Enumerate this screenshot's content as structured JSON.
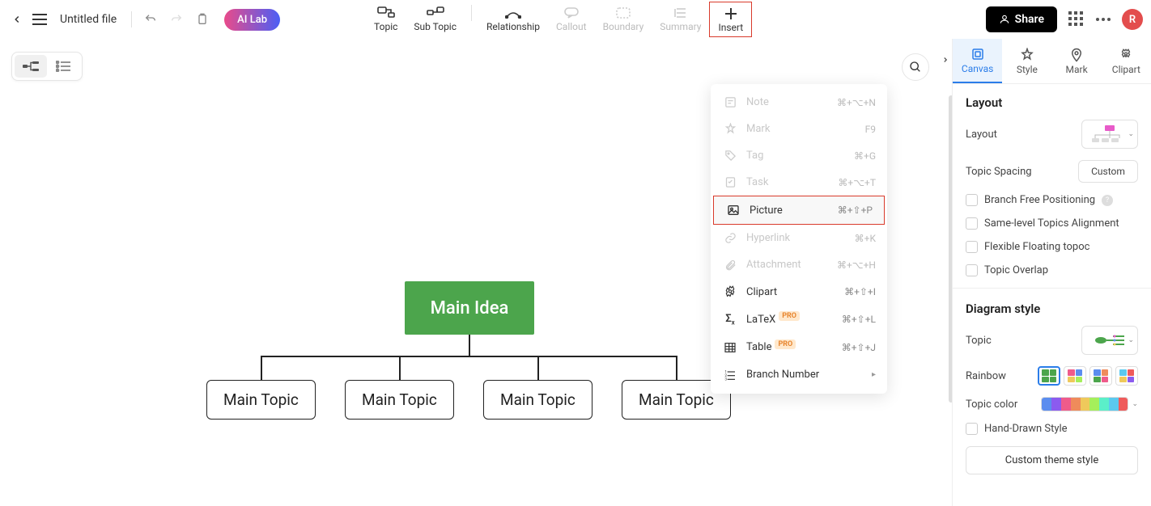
{
  "topbar": {
    "file_title": "Untitled file",
    "ai_lab": "AI Lab",
    "buttons": {
      "topic": "Topic",
      "subtopic": "Sub Topic",
      "relationship": "Relationship",
      "callout": "Callout",
      "boundary": "Boundary",
      "summary": "Summary",
      "insert": "Insert"
    },
    "share": "Share",
    "avatar": "R"
  },
  "mindmap": {
    "main_idea": "Main Idea",
    "topics": [
      "Main Topic",
      "Main Topic",
      "Main Topic",
      "Main Topic"
    ],
    "main_idea_bg": "#4ca54c"
  },
  "insert_menu": [
    {
      "label": "Note",
      "shortcut": "⌘+⌥+N",
      "disabled": true,
      "icon": "note"
    },
    {
      "label": "Mark",
      "shortcut": "F9",
      "disabled": true,
      "icon": "mark"
    },
    {
      "label": "Tag",
      "shortcut": "⌘+G",
      "disabled": true,
      "icon": "tag"
    },
    {
      "label": "Task",
      "shortcut": "⌘+⌥+T",
      "disabled": true,
      "icon": "task"
    },
    {
      "label": "Picture",
      "shortcut": "⌘+⇧+P",
      "disabled": false,
      "highlight": true,
      "icon": "picture"
    },
    {
      "label": "Hyperlink",
      "shortcut": "⌘+K",
      "disabled": true,
      "icon": "link"
    },
    {
      "label": "Attachment",
      "shortcut": "⌘+⌥+H",
      "disabled": true,
      "icon": "attach"
    },
    {
      "label": "Clipart",
      "shortcut": "⌘+⇧+I",
      "disabled": false,
      "icon": "clipart"
    },
    {
      "label": "LaTeX",
      "shortcut": "⌘+⇧+L",
      "disabled": false,
      "pro": true,
      "icon": "latex"
    },
    {
      "label": "Table",
      "shortcut": "⌘+⇧+J",
      "disabled": false,
      "pro": true,
      "icon": "table"
    },
    {
      "label": "Branch Number",
      "shortcut": "",
      "disabled": false,
      "submenu": true,
      "icon": "branchnum"
    }
  ],
  "right_panel": {
    "tabs": [
      "Canvas",
      "Style",
      "Mark",
      "Clipart"
    ],
    "active_tab": 0,
    "layout_section": "Layout",
    "layout_label": "Layout",
    "topic_spacing_label": "Topic Spacing",
    "topic_spacing_value": "Custom",
    "branch_free": "Branch Free Positioning",
    "same_level": "Same-level Topics Alignment",
    "flexible": "Flexible Floating topoc",
    "overlap": "Topic Overlap",
    "diagram_style": "Diagram style",
    "topic_label": "Topic",
    "rainbow_label": "Rainbow",
    "topic_color_label": "Topic color",
    "hand_drawn": "Hand-Drawn Style",
    "custom_theme": "Custom theme style",
    "topic_colors": [
      "#5b8def",
      "#8b5bef",
      "#ef5b8b",
      "#ef8b5b",
      "#efc95b",
      "#a5ef5b",
      "#5befc9",
      "#5bc9ef",
      "#ef5b5b"
    ]
  },
  "pro_badge": "PRO"
}
